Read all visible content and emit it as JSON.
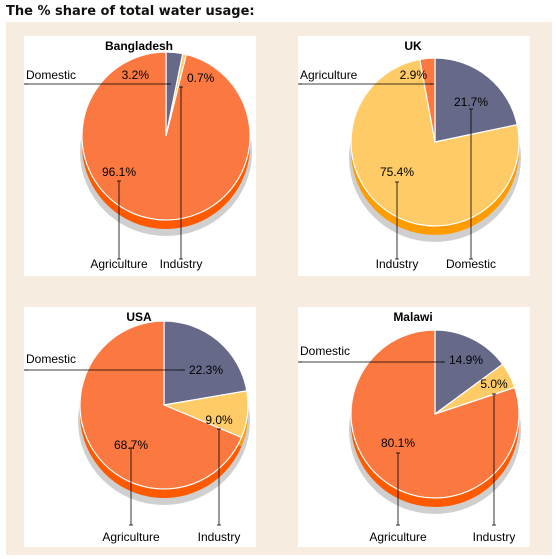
{
  "page": {
    "title": "The % share of total water usage:"
  },
  "colors": {
    "agriculture": "#fb7840",
    "agriculture_edge": "#ff5a00",
    "domestic": "#676989",
    "domestic_edge": "#43455f",
    "industry": "#fecb66",
    "industry_edge": "#ff9d00",
    "panel_bg": "#f6ece0",
    "plot_bg": "#ffffff"
  },
  "chart_data": [
    {
      "type": "pie",
      "title": "Bangladesh",
      "series": [
        {
          "name": "Domestic",
          "value": 3.2,
          "label": "3.2%"
        },
        {
          "name": "Industry",
          "value": 0.7,
          "label": "0.7%"
        },
        {
          "name": "Agriculture",
          "value": 96.1,
          "label": "96.1%"
        }
      ]
    },
    {
      "type": "pie",
      "title": "UK",
      "series": [
        {
          "name": "Domestic",
          "value": 21.7,
          "label": "21.7%"
        },
        {
          "name": "Industry",
          "value": 75.4,
          "label": "75.4%"
        },
        {
          "name": "Agriculture",
          "value": 2.9,
          "label": "2.9%"
        }
      ]
    },
    {
      "type": "pie",
      "title": "USA",
      "series": [
        {
          "name": "Domestic",
          "value": 22.3,
          "label": "22.3%"
        },
        {
          "name": "Industry",
          "value": 9.0,
          "label": "9.0%"
        },
        {
          "name": "Agriculture",
          "value": 68.7,
          "label": "68.7%"
        }
      ]
    },
    {
      "type": "pie",
      "title": "Malawi",
      "series": [
        {
          "name": "Domestic",
          "value": 14.9,
          "label": "14.9%"
        },
        {
          "name": "Industry",
          "value": 5.0,
          "label": "5.0%"
        },
        {
          "name": "Agriculture",
          "value": 80.1,
          "label": "80.1%"
        }
      ]
    }
  ]
}
